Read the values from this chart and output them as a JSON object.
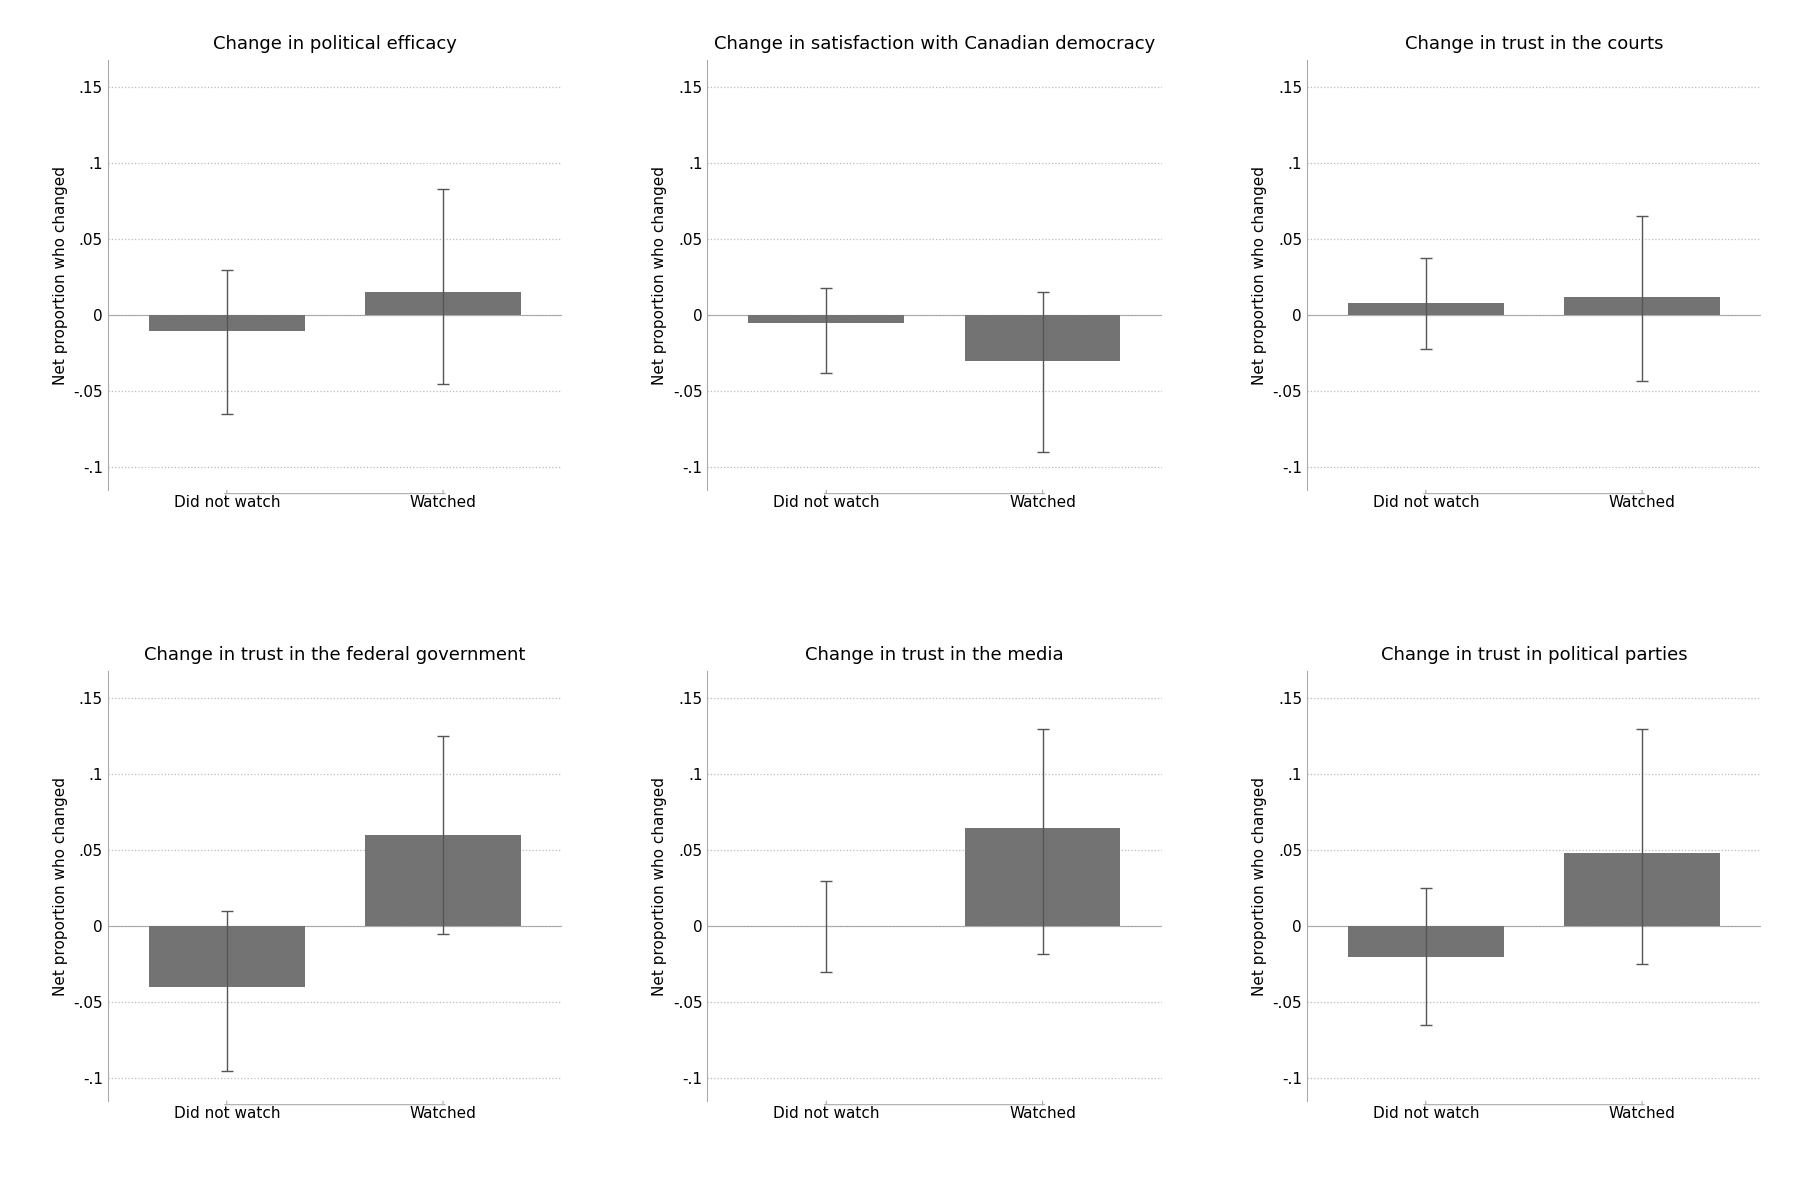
{
  "subplots": [
    {
      "title": "Change in political efficacy",
      "bars": [
        {
          "label": "Did not watch",
          "value": -0.01,
          "ci_low": -0.065,
          "ci_high": 0.03
        },
        {
          "label": "Watched",
          "value": 0.015,
          "ci_low": -0.045,
          "ci_high": 0.083
        }
      ]
    },
    {
      "title": "Change in satisfaction with Canadian democracy",
      "bars": [
        {
          "label": "Did not watch",
          "value": -0.005,
          "ci_low": -0.038,
          "ci_high": 0.018
        },
        {
          "label": "Watched",
          "value": -0.03,
          "ci_low": -0.09,
          "ci_high": 0.015
        }
      ]
    },
    {
      "title": "Change in trust in the courts",
      "bars": [
        {
          "label": "Did not watch",
          "value": 0.008,
          "ci_low": -0.022,
          "ci_high": 0.038
        },
        {
          "label": "Watched",
          "value": 0.012,
          "ci_low": -0.043,
          "ci_high": 0.065
        }
      ]
    },
    {
      "title": "Change in trust in the federal government",
      "bars": [
        {
          "label": "Did not watch",
          "value": -0.04,
          "ci_low": -0.095,
          "ci_high": 0.01
        },
        {
          "label": "Watched",
          "value": 0.06,
          "ci_low": -0.005,
          "ci_high": 0.125
        }
      ]
    },
    {
      "title": "Change in trust in the media",
      "bars": [
        {
          "label": "Did not watch",
          "value": 0.0,
          "ci_low": -0.03,
          "ci_high": 0.03
        },
        {
          "label": "Watched",
          "value": 0.065,
          "ci_low": -0.018,
          "ci_high": 0.13
        }
      ]
    },
    {
      "title": "Change in trust in political parties",
      "bars": [
        {
          "label": "Did not watch",
          "value": -0.02,
          "ci_low": -0.065,
          "ci_high": 0.025
        },
        {
          "label": "Watched",
          "value": 0.048,
          "ci_low": -0.025,
          "ci_high": 0.13
        }
      ]
    }
  ],
  "bar_color": "#737373",
  "bar_width": 0.72,
  "bar_positions": [
    1,
    2
  ],
  "xlim": [
    0.45,
    2.55
  ],
  "ylim": [
    -0.115,
    0.168
  ],
  "yticks": [
    -0.1,
    -0.05,
    0.0,
    0.05,
    0.1,
    0.15
  ],
  "ytick_labels": [
    "-.1",
    "-.05",
    "0",
    ".05",
    ".1",
    ".15"
  ],
  "ylabel": "Net proportion who changed",
  "background_color": "#ffffff",
  "grid_color": "#bbbbbb",
  "title_fontsize": 13,
  "ylabel_fontsize": 11,
  "tick_fontsize": 11,
  "error_capsize": 4,
  "error_linewidth": 1.0,
  "error_color": "#555555",
  "spine_color": "#aaaaaa",
  "bracket_color": "#aaaaaa"
}
